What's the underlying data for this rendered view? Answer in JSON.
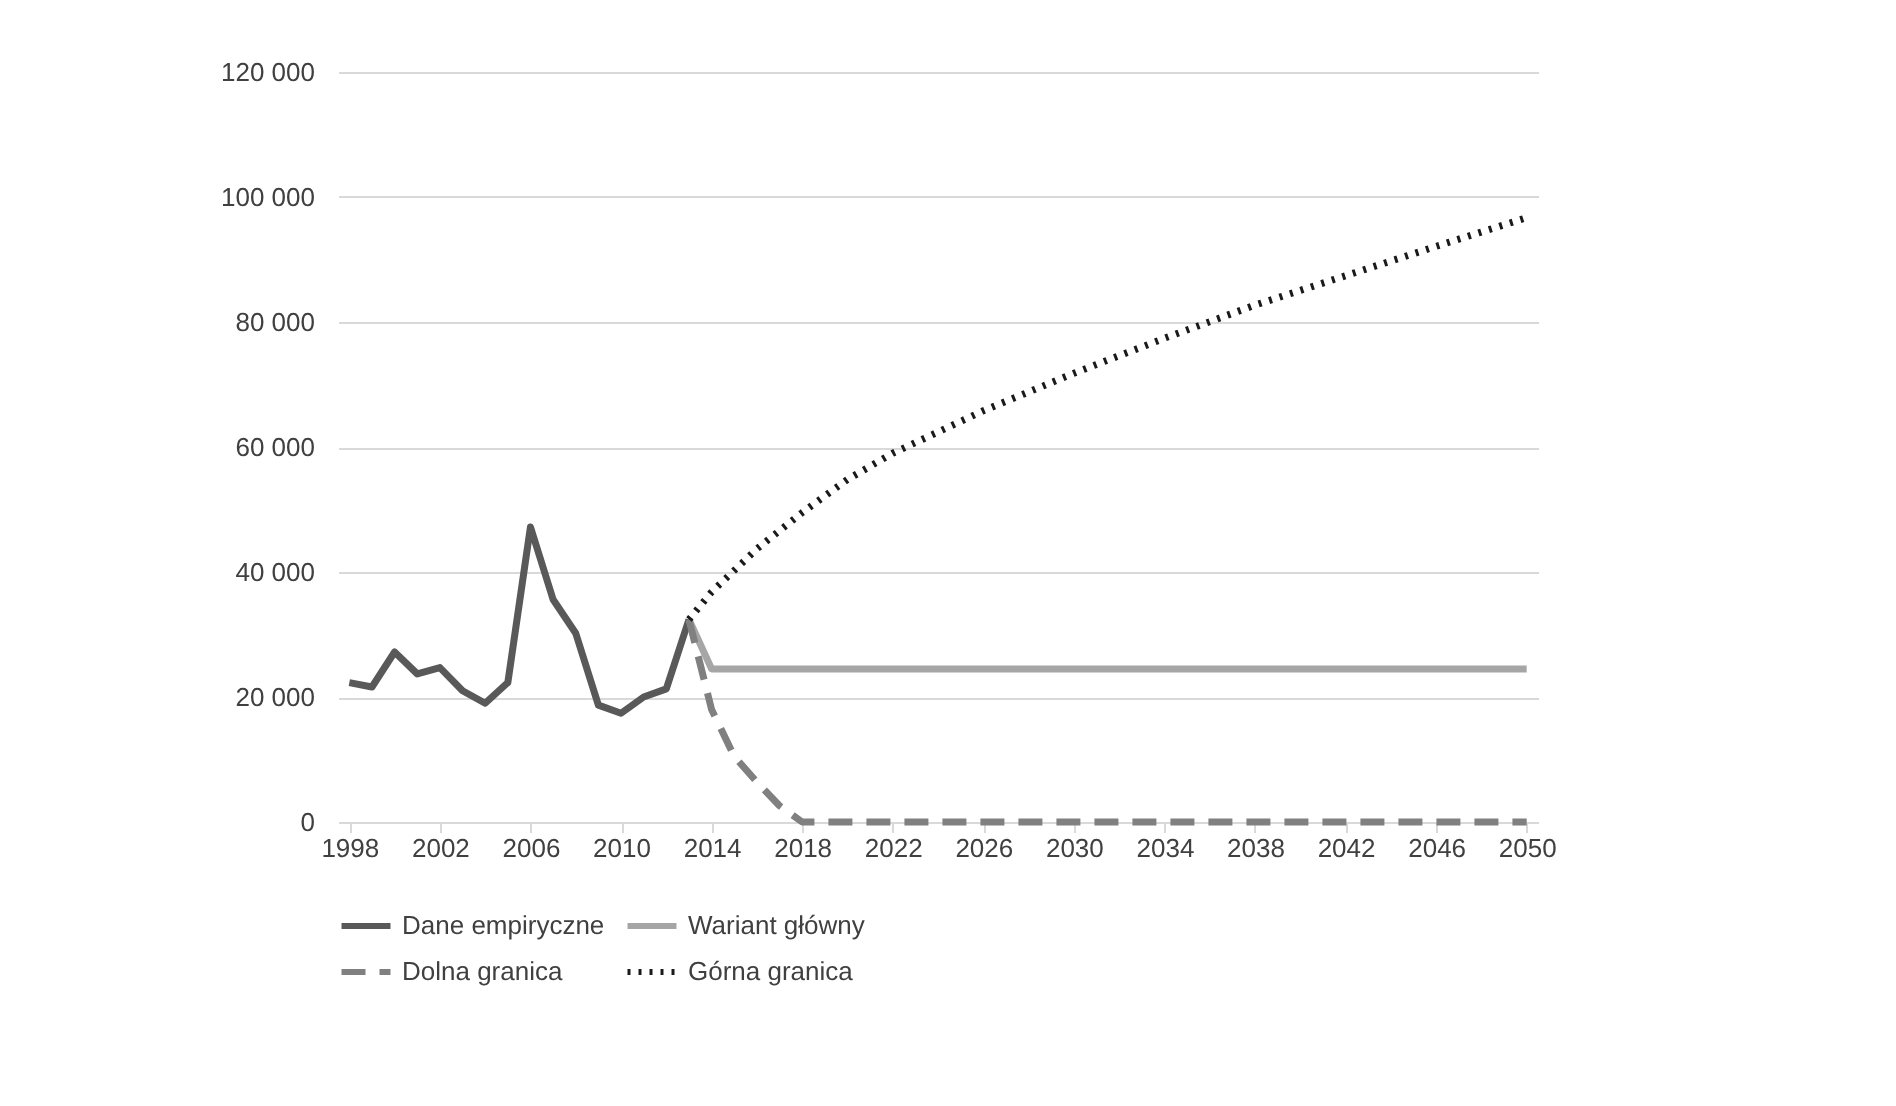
{
  "chart_data": {
    "type": "line",
    "xlim": [
      1997.5,
      2050.5
    ],
    "xticks": [
      1998,
      2002,
      2006,
      2010,
      2014,
      2018,
      2022,
      2026,
      2030,
      2034,
      2038,
      2042,
      2046,
      2050
    ],
    "ylim": [
      0,
      120000
    ],
    "yticks": [
      {
        "value": 0,
        "label": "0"
      },
      {
        "value": 20000,
        "label": "20 000"
      },
      {
        "value": 40000,
        "label": "40 000"
      },
      {
        "value": 60000,
        "label": "60 000"
      },
      {
        "value": 80000,
        "label": "80 000"
      },
      {
        "value": 100000,
        "label": "100 000"
      },
      {
        "value": 120000,
        "label": "120 000"
      }
    ],
    "grid": "y",
    "legend": "bottom",
    "marker": "none",
    "series": [
      {
        "name": "Dane empiryczne",
        "color": "#595959",
        "line_style": "solid",
        "x": [
          1998,
          1999,
          2000,
          2001,
          2002,
          2003,
          2004,
          2005,
          2006,
          2007,
          2008,
          2009,
          2010,
          2011,
          2012,
          2013
        ],
        "values": [
          22300,
          21600,
          27200,
          23700,
          24700,
          21000,
          19000,
          22300,
          47200,
          35600,
          30200,
          18700,
          17400,
          20000,
          21300,
          32400
        ]
      },
      {
        "name": "Wariant główny",
        "color": "#a6a6a6",
        "line_style": "solid",
        "x": [
          2013,
          2014,
          2050
        ],
        "values": [
          32400,
          24500,
          24500
        ]
      },
      {
        "name": "Dolna granica",
        "color": "#808080",
        "line_style": "dashed",
        "x": [
          2013,
          2014,
          2015,
          2016,
          2017,
          2018,
          2050
        ],
        "values": [
          32400,
          18000,
          10500,
          6400,
          2600,
          0,
          0
        ]
      },
      {
        "name": "Górna granica",
        "color": "#1a1a1a",
        "line_style": "dotted",
        "x": [
          2013,
          2014,
          2016,
          2018,
          2020,
          2022,
          2026,
          2030,
          2034,
          2038,
          2042,
          2046,
          2050
        ],
        "values": [
          32400,
          36800,
          43700,
          49500,
          54800,
          59000,
          65800,
          71800,
          77400,
          82700,
          87400,
          92100,
          96700
        ]
      }
    ]
  }
}
